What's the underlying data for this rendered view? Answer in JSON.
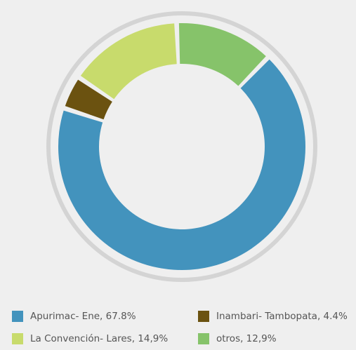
{
  "chart_data": {
    "type": "pie",
    "title": "",
    "categories": [
      "Apurimac- Ene",
      "Inambari- Tambopata",
      "La Convención- Lares",
      "otros"
    ],
    "values": [
      67.8,
      4.4,
      14.9,
      12.9
    ],
    "colors": [
      "#4393bd",
      "#6b5210",
      "#c8db6c",
      "#86c36a"
    ],
    "legend": {
      "position": "bottom",
      "entries": [
        "Apurimac- Ene, 67.8%",
        "Inambari- Tambopata, 4.4%",
        "La Convención- Lares, 14,9%",
        "otros, 12,9%"
      ]
    },
    "style": "donut with outer ring",
    "ring_color": "#d4d4d4"
  }
}
